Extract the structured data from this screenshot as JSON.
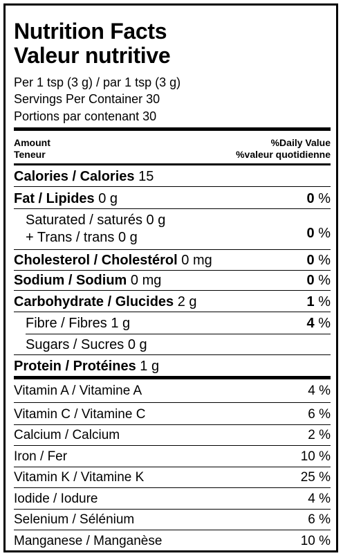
{
  "title_en": "Nutrition Facts",
  "title_fr": "Valeur nutritive",
  "serving_size": "Per 1 tsp (3 g) / par 1 tsp (3 g)",
  "servings_en": "Servings Per Container 30",
  "servings_fr": "Portions par contenant 30",
  "header": {
    "amount_en": "Amount",
    "amount_fr": "Teneur",
    "dv_en": "%Daily Value",
    "dv_fr": "%valeur quotidienne"
  },
  "calories": {
    "label": "Calories / Calories",
    "value": "15"
  },
  "fat": {
    "label": "Fat / Lipides",
    "amount": "0 g",
    "pct": "0",
    "unit": "%"
  },
  "saturated": {
    "label": "Saturated / saturés",
    "amount": "0 g"
  },
  "trans": {
    "label": "+ Trans / trans",
    "amount": "0 g",
    "pct": "0",
    "unit": "%"
  },
  "cholesterol": {
    "label": "Cholesterol / Cholestérol",
    "amount": "0 mg",
    "pct": "0",
    "unit": "%"
  },
  "sodium": {
    "label": "Sodium / Sodium",
    "amount": "0 mg",
    "pct": "0",
    "unit": "%"
  },
  "carbohydrate": {
    "label": "Carbohydrate / Glucides",
    "amount": "2 g",
    "pct": "1",
    "unit": "%"
  },
  "fibre": {
    "label": "Fibre / Fibres",
    "amount": "1 g",
    "pct": "4",
    "unit": "%"
  },
  "sugars": {
    "label": "Sugars / Sucres",
    "amount": "0 g"
  },
  "protein": {
    "label": "Protein / Protéines",
    "amount": "1 g"
  },
  "vitamins": [
    {
      "label": "Vitamin A / Vitamine A",
      "pct": "4 %"
    },
    {
      "label": "Vitamin C / Vitamine C",
      "pct": "6 %"
    },
    {
      "label": "Calcium / Calcium",
      "pct": "2 %"
    },
    {
      "label": "Iron / Fer",
      "pct": "10 %"
    },
    {
      "label": "Vitamin K / Vitamine K",
      "pct": "25 %"
    },
    {
      "label": "Iodide / Iodure",
      "pct": "4 %"
    },
    {
      "label": "Selenium / Sélénium",
      "pct": "6 %"
    },
    {
      "label": "Manganese / Manganèse",
      "pct": "10 %"
    }
  ]
}
